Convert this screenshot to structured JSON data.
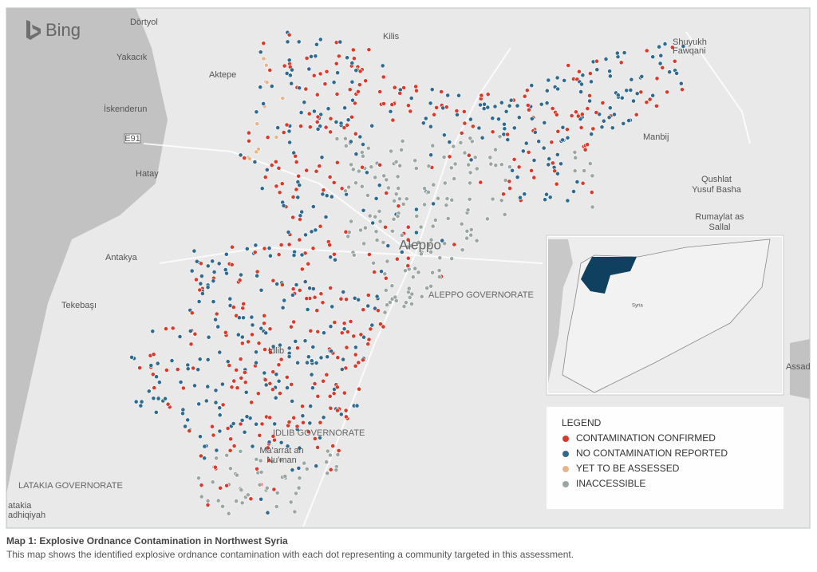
{
  "map": {
    "logo": "Bing",
    "labels": [
      "Dörtyol",
      "Kilis",
      "Shuyukh",
      "Fawqani",
      "Yakacık",
      "Aktepe",
      "İskenderun",
      "E91",
      "Manbij",
      "Hatay",
      "Qushlat",
      "Yusuf Basha",
      "Rumaylat as",
      "Sallal",
      "Aleppo",
      "Antakya",
      "ALEPPO GOVERNORATE",
      "Tekebaşı",
      "Idlib",
      "IDLIB GOVERNORATE",
      "Ma'arrat an",
      "Nu'man",
      "LATAKIA GOVERNORATE",
      "atakia",
      "adhiqiyah",
      "Assad"
    ],
    "inset_label": "Syria"
  },
  "legend": {
    "title": "LEGEND",
    "items": [
      {
        "label": "CONTAMINATION CONFIRMED",
        "color": "#d93a2b"
      },
      {
        "label": "NO CONTAMINATION REPORTED",
        "color": "#2e6b8f"
      },
      {
        "label": "YET TO BE ASSESSED",
        "color": "#e8b48a"
      },
      {
        "label": "INACCESSIBLE",
        "color": "#9aa7a0"
      }
    ]
  },
  "caption": {
    "title": "Map 1: Explosive Ordnance Contamination in Northwest Syria",
    "text": "This map shows the identified explosive ordnance contamination with each dot representing a community targeted in this assessment."
  }
}
